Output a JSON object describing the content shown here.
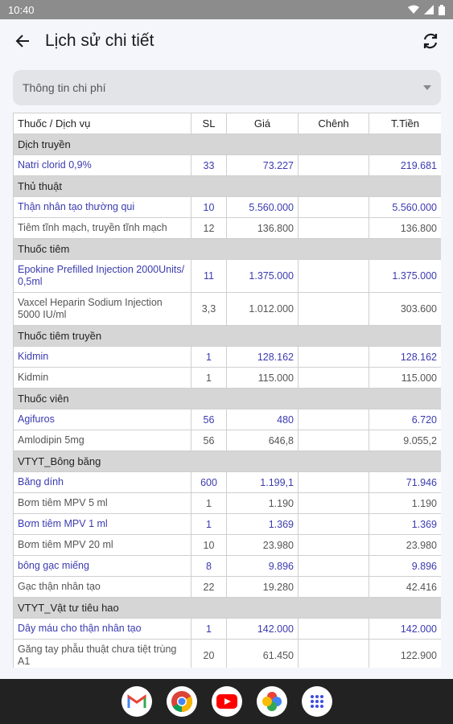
{
  "status": {
    "time": "10:40"
  },
  "header": {
    "title": "Lịch sử chi tiết"
  },
  "filter": {
    "label": "Thông tin chi phí"
  },
  "table": {
    "columns": [
      "Thuốc / Dịch vụ",
      "SL",
      "Giá",
      "Chênh",
      "T.Tiền"
    ],
    "groups": [
      {
        "name": "Dịch truyền",
        "rows": [
          {
            "name": "Natri clorid 0,9%",
            "sl": "33",
            "gia": "73.227",
            "chenh": "",
            "total": "219.681",
            "style": "blue"
          }
        ]
      },
      {
        "name": "Thủ thuật",
        "rows": [
          {
            "name": "Thận nhân tạo thường qui",
            "sl": "10",
            "gia": "5.560.000",
            "chenh": "",
            "total": "5.560.000",
            "style": "blue"
          },
          {
            "name": "Tiêm tĩnh mạch, truyền tĩnh mạch",
            "sl": "12",
            "gia": "136.800",
            "chenh": "",
            "total": "136.800",
            "style": "gray"
          }
        ]
      },
      {
        "name": "Thuốc tiêm",
        "rows": [
          {
            "name": "Epokine Prefilled Injection 2000Units/ 0,5ml",
            "sl": "11",
            "gia": "1.375.000",
            "chenh": "",
            "total": "1.375.000",
            "style": "blue",
            "tall": true
          },
          {
            "name": "Vaxcel Heparin Sodium Injection 5000 IU/ml",
            "sl": "3,3",
            "gia": "1.012.000",
            "chenh": "",
            "total": "303.600",
            "style": "gray",
            "tall": true
          }
        ]
      },
      {
        "name": "Thuốc tiêm truyền",
        "rows": [
          {
            "name": "Kidmin",
            "sl": "1",
            "gia": "128.162",
            "chenh": "",
            "total": "128.162",
            "style": "blue"
          },
          {
            "name": "Kidmin",
            "sl": "1",
            "gia": "115.000",
            "chenh": "",
            "total": "115.000",
            "style": "gray"
          }
        ]
      },
      {
        "name": "Thuốc viên",
        "rows": [
          {
            "name": "Agifuros",
            "sl": "56",
            "gia": "480",
            "chenh": "",
            "total": "6.720",
            "style": "blue"
          },
          {
            "name": "Amlodipin 5mg",
            "sl": "56",
            "gia": "646,8",
            "chenh": "",
            "total": "9.055,2",
            "style": "gray"
          }
        ]
      },
      {
        "name": "VTYT_Bông băng",
        "rows": [
          {
            "name": "Băng dính",
            "sl": "600",
            "gia": "1.199,1",
            "chenh": "",
            "total": "71.946",
            "style": "blue"
          },
          {
            "name": "Bơm tiêm MPV 5 ml",
            "sl": "1",
            "gia": "1.190",
            "chenh": "",
            "total": "1.190",
            "style": "gray"
          },
          {
            "name": "Bơm tiêm MPV 1 ml",
            "sl": "1",
            "gia": "1.369",
            "chenh": "",
            "total": "1.369",
            "style": "blue"
          },
          {
            "name": "Bơm tiêm MPV 20 ml",
            "sl": "10",
            "gia": "23.980",
            "chenh": "",
            "total": "23.980",
            "style": "gray"
          },
          {
            "name": "bông gạc miếng",
            "sl": "8",
            "gia": "9.896",
            "chenh": "",
            "total": "9.896",
            "style": "blue"
          },
          {
            "name": "Gạc thận nhân tạo",
            "sl": "22",
            "gia": "19.280",
            "chenh": "",
            "total": "42.416",
            "style": "gray"
          }
        ]
      },
      {
        "name": "VTYT_Vật tư tiêu hao",
        "rows": [
          {
            "name": "Dây máu cho thận nhân tạo",
            "sl": "1",
            "gia": "142.000",
            "chenh": "",
            "total": "142.000",
            "style": "blue"
          },
          {
            "name": "Găng tay phẫu thuật chưa tiệt trùng A1",
            "sl": "20",
            "gia": "61.450",
            "chenh": "",
            "total": "122.900",
            "style": "gray",
            "tall": true
          }
        ]
      }
    ]
  },
  "dock": {
    "apps": [
      "gmail-icon",
      "chrome-icon",
      "youtube-icon",
      "photos-icon",
      "app-drawer-icon"
    ]
  }
}
